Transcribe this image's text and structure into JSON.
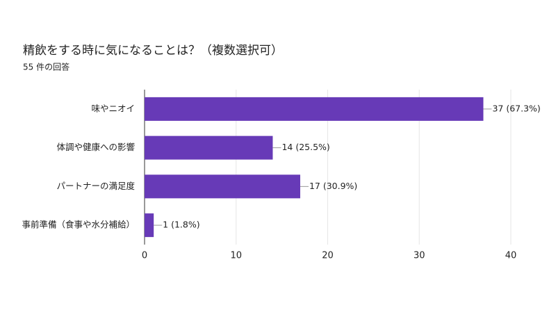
{
  "chart_data": {
    "type": "bar",
    "title": "精飲をする時に気になることは？（複数選択可）",
    "subtitle": "55 件の回答",
    "categories": [
      "味やニオイ",
      "体調や健康への影響",
      "パートナーの満足度",
      "事前準備（食事や水分補給）"
    ],
    "values": [
      37,
      14,
      17,
      1
    ],
    "value_labels": [
      "37 (67.3%)",
      "14 (25.5%)",
      "17 (30.9%)",
      "1 (1.8%)"
    ],
    "color": "#673ab7",
    "xlim": [
      0,
      40
    ],
    "xticks": [
      0,
      10,
      20,
      30,
      40
    ],
    "grid": true
  }
}
